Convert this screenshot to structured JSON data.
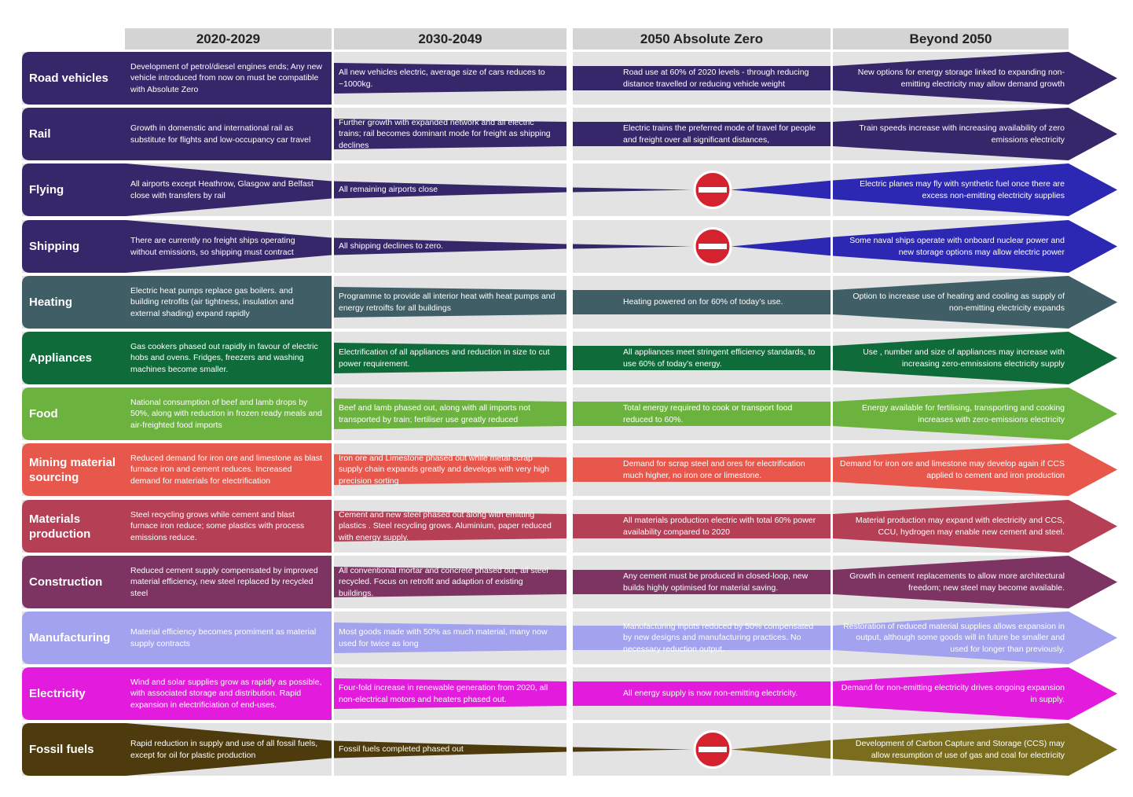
{
  "headers": [
    "2020-2029",
    "2030-2049",
    "2050 Absolute Zero",
    "Beyond 2050"
  ],
  "rows": [
    {
      "label": "Road vehicles",
      "shape": "full",
      "color": "#35276a",
      "color4": "#35276a",
      "c1": "Development of petrol/diesel engines ends; Any new vehicle introduced from now on must be compatible with Absolute Zero",
      "c2": "All new vehicles electric, average size of cars reduces to ~1000kg.",
      "c3": "Road use at 60% of 2020 levels - through reducing distance travelled or reducing vehicle weight",
      "c4": "New options for energy storage linked to expanding non-emitting electricity may allow demand growth"
    },
    {
      "label": "Rail",
      "shape": "full",
      "color": "#35276a",
      "color4": "#35276a",
      "c1": "Growth in domenstic and international rail as substitute for flights and low-occupancy car travel",
      "c2": "Further growth with expanded network and all electric trains; rail becomes dominant mode for freight as shipping declines",
      "c3": "Electric trains the preferred mode of travel for people and freight over all significant distances,",
      "c4": "Train speeds increase with increasing availability of zero emissions electricity"
    },
    {
      "label": "Flying",
      "shape": "stop",
      "color": "#35276a",
      "color4": "#2d28b4",
      "c1": "All airports except Heathrow, Glasgow and Belfast close with transfers by rail",
      "c2": "All remaining airports close",
      "c3": "",
      "c4": "Electric planes may fly with synthetic fuel once there are excess non-emitting electricity supplies"
    },
    {
      "label": "Shipping",
      "shape": "stop",
      "color": "#35276a",
      "color4": "#2d28b4",
      "c1": "There are currently no freight ships operating without emissions, so shipping must contract",
      "c2": "All shipping declines to zero.",
      "c3": "",
      "c4": "Some naval ships operate with onboard nuclear power and new storage options may allow electric power"
    },
    {
      "label": "Heating",
      "shape": "full",
      "color": "#3f5e66",
      "color4": "#3f5e66",
      "c1": "Electric heat pumps replace gas boilers. and building retrofits (air tightness, insulation and external shading) expand rapidly",
      "c2": "Programme to provide all interior heat with heat pumps and energy retroifts for all buildings",
      "c3": "Heating powered on for 60% of today’s use.",
      "c4": "Option to increase use of heating and cooling as supply of non-emitting electricity expands"
    },
    {
      "label": "Appliances",
      "shape": "full",
      "color": "#0f6b3a",
      "color4": "#0f6b3a",
      "c1": "Gas cookers phased out rapidly in favour of electric hobs and ovens. Fridges, freezers and washing machines become smaller.",
      "c2": "Electrification of all appliances and reduction in size to cut power requirement.",
      "c3": "All appliances meet stringent efficiency standards, to use 60% of today’s energy.",
      "c4": "Use , number and size of appliances may increase with increasing zero-emnissions electricity supply"
    },
    {
      "label": "Food",
      "shape": "full",
      "color": "#6bb33e",
      "color4": "#6bb33e",
      "c1": "National consumption of beef and lamb drops by 50%, along with reduction in frozen ready meals and air-freighted food imports",
      "c2": "Beef and lamb phased out, along with all imports not transported by train; fertiliser use greatly reduced",
      "c3": "Total energy required to cook or transport food reduced to 60%.",
      "c4": "Energy available for fertilising, transporting and cooking increases with zero-emissions electricity"
    },
    {
      "label": "Mining material sourcing",
      "shape": "full",
      "color": "#e8574c",
      "color4": "#e8574c",
      "c1": "Reduced demand for iron ore and limestone as blast furnace iron and cement reduces. Increased demand for materials for electrification",
      "c2": "Iron ore and Limestone phased out while metal scrap supply chain expands greatly and develops with very high precision sorting",
      "c3": "Demand for scrap steel and ores for electrification much higher, no iron ore or limestone.",
      "c4": "Demand for iron ore and limestone may develop again if CCS applied to cement and iron production"
    },
    {
      "label": "Materials production",
      "shape": "full",
      "color": "#b53f55",
      "color4": "#b53f55",
      "c1": "Steel recycling grows while cement and blast furnace iron reduce; some plastics with process emissions reduce.",
      "c2": "Cement and new steel phased out along with emitting plastics . Steel recycling grows. Aluminium, paper reduced with energy supply.",
      "c3": "All materials production electric with total 60% power availability compared to 2020",
      "c4": "Material production may expand with electricity and CCS, CCU, hydrogen may enable new cement and steel."
    },
    {
      "label": "Construction",
      "shape": "full",
      "color": "#7e3462",
      "color4": "#7e3462",
      "c1": "Reduced cement supply compensated by improved material efficiency, new steel replaced by recycled steel",
      "c2": "All conventional mortar and concrete phased out, all steel recycled. Focus on retrofit and adaption of existing buildings.",
      "c3": "Any cement must be produced in closed-loop, new builds highly optimised for material saving.",
      "c4": "Growth in cement replacements to allow more architectural freedom; new steel may become available."
    },
    {
      "label": "Manufacturing",
      "shape": "full",
      "color": "#a2a2ee",
      "color4": "#a2a2ee",
      "c1": "Material efficiency becomes promiment as material supply contracts",
      "c2": "Most goods made with 50% as much material, many now used for twice as long",
      "c3": "Manufacturing inputs reduced by 50% compensated by new designs and manufacturing practices. No necessary reduction output.",
      "c4": "Restoration of reduced material supplies allows expansion in output, although some goods will in future be smaller and used for longer than previously."
    },
    {
      "label": "Electricity",
      "shape": "full",
      "color": "#e21bdc",
      "color4": "#e21bdc",
      "c1": "Wind and solar supplies grow as rapidly as possible, with associated storage and distribution. Rapid expansion in electrificiation of end-uses.",
      "c2": "Four-fold increase in renewable generation from 2020, all non-electrical motors and heaters phased out.",
      "c3": "All energy supply is now non-emitting electricity.",
      "c4": "Demand for non-emitting electricity drives ongoing expansion in supply."
    },
    {
      "label": "Fossil fuels",
      "shape": "stop",
      "color": "#4d3b0d",
      "color4": "#7a6e1e",
      "c1": "Rapid reduction in supply and use of all fossil fuels, except for oil for plastic production",
      "c2": "Fossil fuels completed phased out",
      "c3": "",
      "c4": "Development of Carbon Capture and Storage (CCS) may allow resumption of use of gas and coal for electricity"
    }
  ]
}
